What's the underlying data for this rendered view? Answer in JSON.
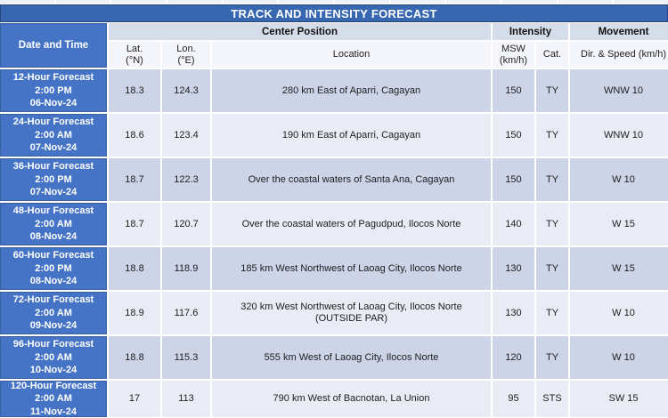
{
  "title": "TRACK AND INTENSITY FORECAST",
  "header": {
    "date_time": "Date and Time",
    "center_position": "Center Position",
    "intensity": "Intensity",
    "movement": "Movement",
    "lat_label": "Lat.",
    "lat_unit": "(°N)",
    "lon_label": "Lon.",
    "lon_unit": "(°E)",
    "location": "Location",
    "msw_label": "MSW",
    "msw_unit": "(km/h)",
    "cat": "Cat.",
    "dir_speed": "Dir. & Speed (km/h)"
  },
  "rows": [
    {
      "forecast": "12-Hour Forecast",
      "time": "2:00 PM",
      "date": "06-Nov-24",
      "lat": "18.3",
      "lon": "124.3",
      "location": "280 km East of Aparri, Cagayan",
      "msw": "150",
      "cat": "TY",
      "movement": "WNW 10"
    },
    {
      "forecast": "24-Hour Forecast",
      "time": "2:00 AM",
      "date": "07-Nov-24",
      "lat": "18.6",
      "lon": "123.4",
      "location": "190 km East of Aparri, Cagayan",
      "msw": "150",
      "cat": "TY",
      "movement": "WNW 10"
    },
    {
      "forecast": "36-Hour Forecast",
      "time": "2:00 PM",
      "date": "07-Nov-24",
      "lat": "18.7",
      "lon": "122.3",
      "location": "Over the coastal waters of Santa Ana, Cagayan",
      "msw": "150",
      "cat": "TY",
      "movement": "W 10"
    },
    {
      "forecast": "48-Hour Forecast",
      "time": "2:00 AM",
      "date": "08-Nov-24",
      "lat": "18.7",
      "lon": "120.7",
      "location": "Over the coastal waters of Pagudpud, Ilocos Norte",
      "msw": "140",
      "cat": "TY",
      "movement": "W 15"
    },
    {
      "forecast": "60-Hour Forecast",
      "time": "2:00 PM",
      "date": "08-Nov-24",
      "lat": "18.8",
      "lon": "118.9",
      "location": "185 km West Northwest of Laoag City, Ilocos Norte",
      "msw": "130",
      "cat": "TY",
      "movement": "W 15"
    },
    {
      "forecast": "72-Hour Forecast",
      "time": "2:00 AM",
      "date": "09-Nov-24",
      "lat": "18.9",
      "lon": "117.6",
      "location": "320 km West Northwest of Laoag City, Ilocos Norte",
      "location2": "(OUTSIDE PAR)",
      "msw": "130",
      "cat": "TY",
      "movement": "W 10"
    },
    {
      "forecast": "96-Hour Forecast",
      "time": "2:00 AM",
      "date": "10-Nov-24",
      "lat": "18.8",
      "lon": "115.3",
      "location": "555 km West of Laoag City, Ilocos Norte",
      "msw": "120",
      "cat": "TY",
      "movement": "W 10"
    },
    {
      "forecast": "120-Hour Forecast",
      "time": "2:00 AM",
      "date": "11-Nov-24",
      "lat": "17",
      "lon": "113",
      "location": "790 km West of Bacnotan, La Union",
      "msw": "95",
      "cat": "STS",
      "movement": "SW 15"
    }
  ],
  "colors": {
    "title_bar": "#3767B1",
    "date_cell": "#4574C7",
    "group_header": "#D5DCEA",
    "sub_header": "#F3F5FA",
    "row_dark": "#CDD4E8",
    "row_light": "#E9ECF5",
    "grid_line": "#FFFFFF"
  }
}
